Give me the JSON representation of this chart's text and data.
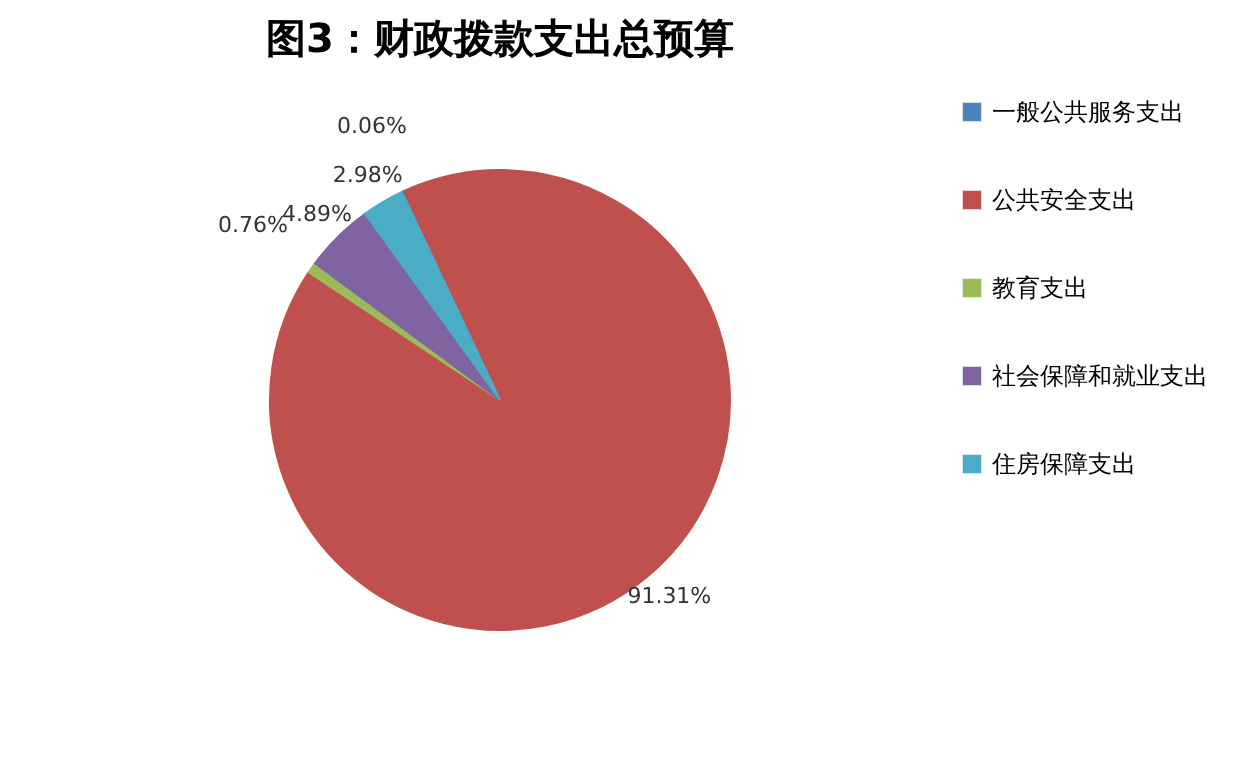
{
  "chart_data": {
    "type": "pie",
    "title": "图3：财政拨款支出总预算",
    "categories": [
      "一般公共服务支出",
      "公共安全支出",
      "教育支出",
      "社会保障和就业支出",
      "住房保障支出"
    ],
    "values": [
      0.06,
      91.31,
      0.76,
      4.89,
      2.98
    ],
    "colors": [
      "#4f81bd",
      "#c0504d",
      "#9bbb59",
      "#8064a2",
      "#4bacc6"
    ],
    "value_labels": [
      "0.06%",
      "91.31%",
      "0.76%",
      "4.89%",
      "2.98%"
    ],
    "legend": "right"
  }
}
